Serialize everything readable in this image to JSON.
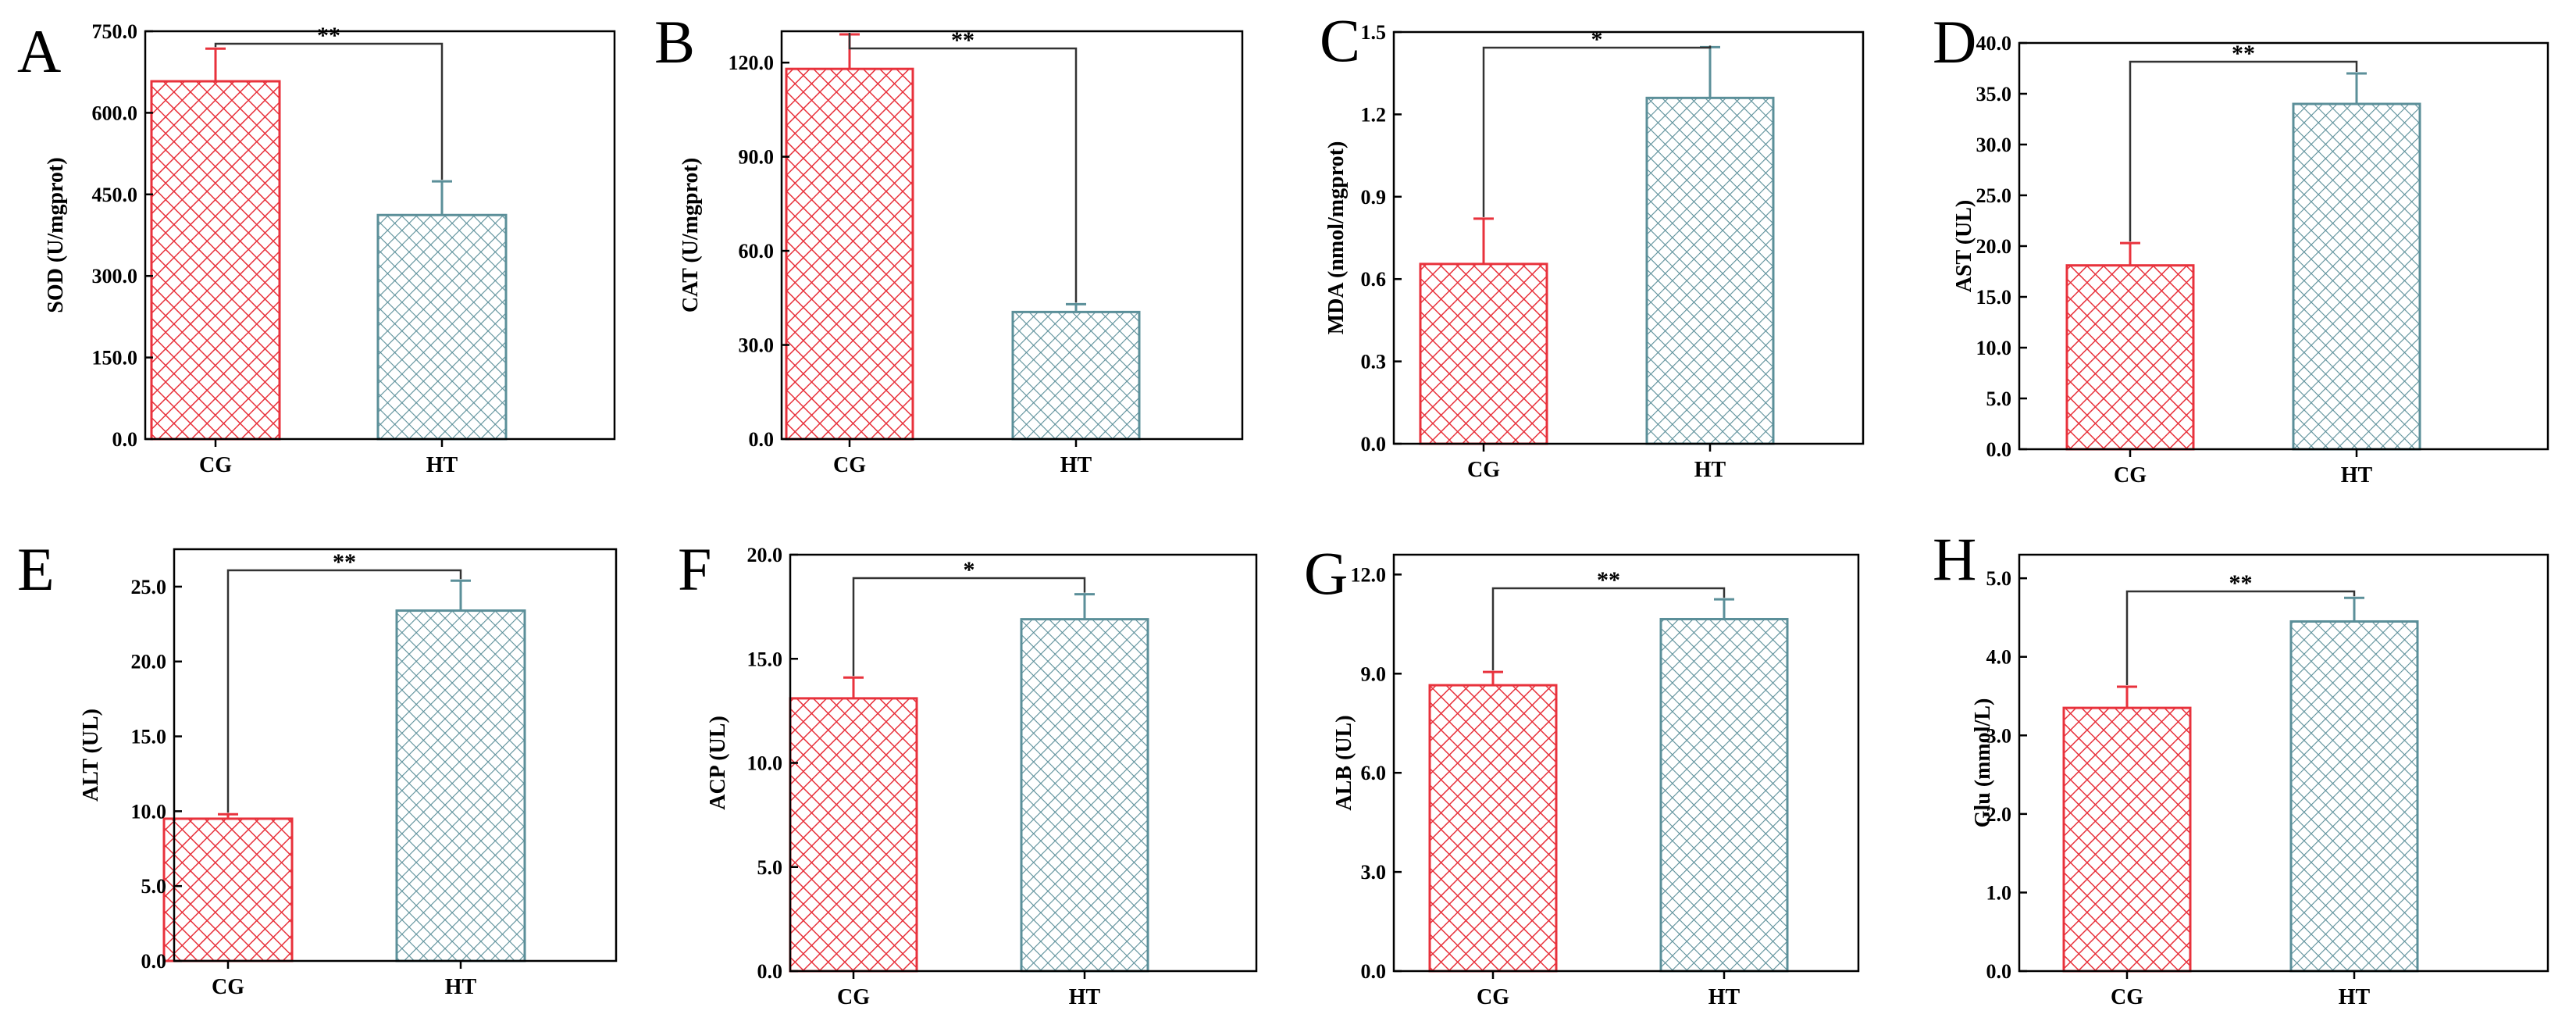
{
  "chart_data": [
    {
      "panel": "A",
      "type": "bar",
      "categories": [
        "CG",
        "HT"
      ],
      "values": [
        658,
        412
      ],
      "errors": [
        60,
        62
      ],
      "ylabel": "SOD (U/mgprot)",
      "ylim": [
        0,
        750
      ],
      "yticks": [
        "0.0",
        "150.0",
        "300.0",
        "450.0",
        "600.0",
        "750.0"
      ],
      "significance": "**"
    },
    {
      "panel": "B",
      "type": "bar",
      "categories": [
        "CG",
        "HT"
      ],
      "values": [
        118,
        40.5
      ],
      "errors": [
        11,
        2.5
      ],
      "ylabel": "CAT (U/mgprot)",
      "ylim": [
        0,
        130
      ],
      "yticks": [
        "0.0",
        "30.0",
        "60.0",
        "90.0",
        "120.0"
      ],
      "significance": "**"
    },
    {
      "panel": "C",
      "type": "bar",
      "categories": [
        "CG",
        "HT"
      ],
      "values": [
        0.655,
        1.26
      ],
      "errors": [
        0.165,
        0.185
      ],
      "ylabel": "MDA (nmol/mgprot)",
      "ylim": [
        0,
        1.5
      ],
      "yticks": [
        "0.0",
        "0.3",
        "0.6",
        "0.9",
        "1.2",
        "1.5"
      ],
      "significance": "*"
    },
    {
      "panel": "D",
      "type": "bar",
      "categories": [
        "CG",
        "HT"
      ],
      "values": [
        18.1,
        34.0
      ],
      "errors": [
        2.2,
        3.0
      ],
      "ylabel": "AST (UL)",
      "ylim": [
        0,
        40
      ],
      "yticks": [
        "0.0",
        "5.0",
        "10.0",
        "15.0",
        "20.0",
        "25.0",
        "30.0",
        "35.0",
        "40.0"
      ],
      "significance": "**"
    },
    {
      "panel": "E",
      "type": "bar",
      "categories": [
        "CG",
        "HT"
      ],
      "values": [
        9.5,
        23.4
      ],
      "errors": [
        0.3,
        2.0
      ],
      "ylabel": "ALT (UL)",
      "ylim": [
        0,
        27.5
      ],
      "yticks": [
        "0.0",
        "5.0",
        "10.0",
        "15.0",
        "20.0",
        "25.0"
      ],
      "significance": "**"
    },
    {
      "panel": "F",
      "type": "bar",
      "categories": [
        "CG",
        "HT"
      ],
      "values": [
        13.1,
        16.9
      ],
      "errors": [
        1.0,
        1.2
      ],
      "ylabel": "ACP (UL)",
      "ylim": [
        0,
        20
      ],
      "yticks": [
        "0.0",
        "5.0",
        "10.0",
        "15.0",
        "20.0"
      ],
      "significance": "*"
    },
    {
      "panel": "G",
      "type": "bar",
      "categories": [
        "CG",
        "HT"
      ],
      "values": [
        8.65,
        10.65
      ],
      "errors": [
        0.4,
        0.6
      ],
      "ylabel": "ALB (UL)",
      "ylim": [
        0,
        12.6
      ],
      "yticks": [
        "0.0",
        "3.0",
        "6.0",
        "9.0",
        "12.0"
      ],
      "significance": "**"
    },
    {
      "panel": "H",
      "type": "bar",
      "categories": [
        "CG",
        "HT"
      ],
      "values": [
        3.35,
        4.45
      ],
      "errors": [
        0.27,
        0.3
      ],
      "ylabel": "Glu (mmol/L)",
      "ylim": [
        0,
        5.3
      ],
      "yticks": [
        "0.0",
        "1.0",
        "2.0",
        "3.0",
        "4.0",
        "5.0"
      ],
      "significance": "**"
    }
  ],
  "colors": {
    "cg": "#e8323c",
    "ht": "#5b8f99",
    "axis": "#000000"
  }
}
